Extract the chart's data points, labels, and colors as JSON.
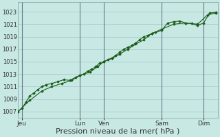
{
  "background_color": "#c8e8e4",
  "grid_color": "#a8cccc",
  "line_color": "#1a5c1a",
  "marker_color": "#1a5c1a",
  "xlabel": "Pression niveau de la mer( hPa )",
  "ylim": [
    1006.0,
    1024.5
  ],
  "yticks": [
    1007,
    1009,
    1011,
    1013,
    1015,
    1017,
    1019,
    1021,
    1023
  ],
  "xlim": [
    0,
    100
  ],
  "xtick_positions": [
    2,
    31,
    43,
    72,
    93
  ],
  "xtick_labels": [
    "Jeu",
    "Lun",
    "Ven",
    "Sam",
    "Dim"
  ],
  "vlines": [
    2,
    31,
    43,
    72,
    93
  ],
  "line1_x": [
    0,
    2,
    4,
    6,
    8,
    10,
    12,
    14,
    17,
    20,
    23,
    26,
    29,
    31,
    33,
    35,
    37,
    39,
    41,
    43,
    45,
    47,
    49,
    51,
    53,
    55,
    57,
    59,
    61,
    63,
    65,
    67,
    69,
    72,
    75,
    78,
    81,
    84,
    87,
    90,
    93,
    96,
    99
  ],
  "line1_y": [
    1007.0,
    1007.5,
    1008.5,
    1009.5,
    1010.0,
    1010.5,
    1011.0,
    1011.3,
    1011.5,
    1011.8,
    1012.1,
    1012.0,
    1012.5,
    1012.8,
    1013.0,
    1013.5,
    1013.8,
    1014.2,
    1014.8,
    1015.0,
    1015.3,
    1015.6,
    1016.0,
    1016.5,
    1017.0,
    1017.3,
    1017.6,
    1018.0,
    1018.5,
    1019.0,
    1019.2,
    1019.5,
    1019.7,
    1020.0,
    1021.2,
    1021.4,
    1021.5,
    1021.2,
    1021.1,
    1020.8,
    1021.2,
    1022.8,
    1022.9
  ],
  "line2_x": [
    0,
    6,
    12,
    17,
    22,
    27,
    31,
    36,
    40,
    43,
    47,
    51,
    55,
    59,
    63,
    67,
    72,
    78,
    84,
    90,
    95,
    99
  ],
  "line2_y": [
    1007.0,
    1008.8,
    1010.3,
    1011.0,
    1011.5,
    1012.0,
    1012.8,
    1013.3,
    1014.2,
    1015.0,
    1015.5,
    1016.2,
    1017.0,
    1017.8,
    1018.5,
    1019.5,
    1020.2,
    1021.0,
    1021.2,
    1021.0,
    1022.5,
    1022.8
  ],
  "xlabel_fontsize": 8,
  "ytick_fontsize": 6,
  "xtick_fontsize": 6.5
}
